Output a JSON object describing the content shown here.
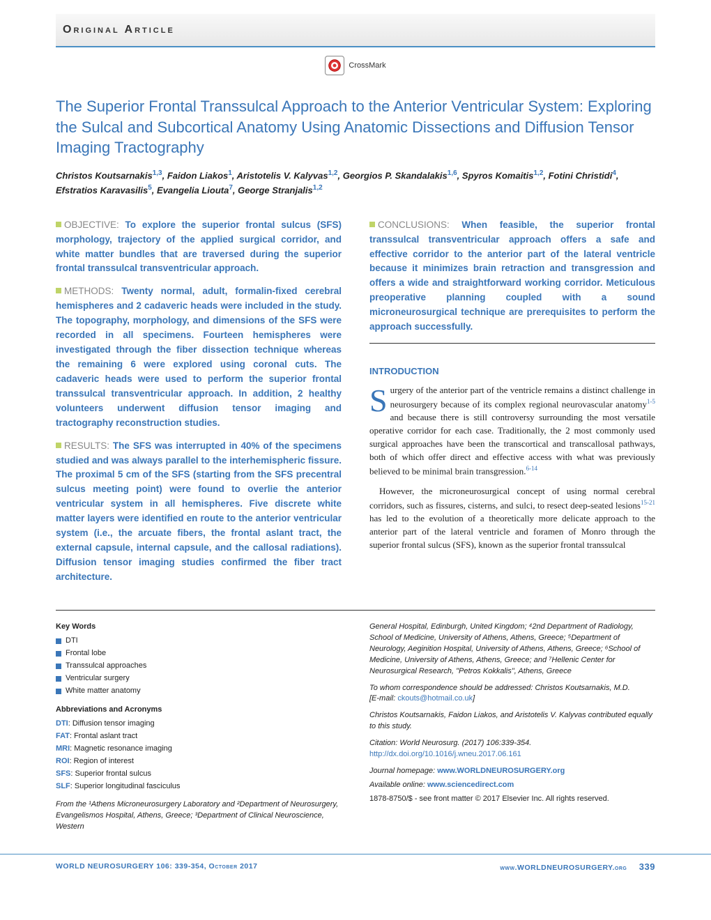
{
  "header": {
    "label": "Original Article"
  },
  "crossmark": {
    "text": "CrossMark"
  },
  "title": "The Superior Frontal Transsulcal Approach to the Anterior Ventricular System: Exploring the Sulcal and Subcortical Anatomy Using Anatomic Dissections and Diffusion Tensor Imaging Tractography",
  "authors_html": "Christos Koutsarnakis<sup>1,3</sup>, Faidon Liakos<sup>1</sup>, Aristotelis V. Kalyvas<sup>1,2</sup>, Georgios P. Skandalakis<sup>1,6</sup>, Spyros Komaitis<sup>1,2</sup>, Fotini Christidi<sup>4</sup>, Efstratios Karavasilis<sup>5</sup>, Evangelia Liouta<sup>7</sup>, George Stranjalis<sup>1,2</sup>",
  "abstract": {
    "objective": {
      "label": "OBJECTIVE:",
      "text": "To explore the superior frontal sulcus (SFS) morphology, trajectory of the applied surgical corridor, and white matter bundles that are traversed during the superior frontal transsulcal transventricular approach."
    },
    "methods": {
      "label": "METHODS:",
      "text": "Twenty normal, adult, formalin-fixed cerebral hemispheres and 2 cadaveric heads were included in the study. The topography, morphology, and dimensions of the SFS were recorded in all specimens. Fourteen hemispheres were investigated through the fiber dissection technique whereas the remaining 6 were explored using coronal cuts. The cadaveric heads were used to perform the superior frontal transsulcal transventricular approach. In addition, 2 healthy volunteers underwent diffusion tensor imaging and tractography reconstruction studies."
    },
    "results": {
      "label": "RESULTS:",
      "text": "The SFS was interrupted in 40% of the specimens studied and was always parallel to the interhemispheric fissure. The proximal 5 cm of the SFS (starting from the SFS precentral sulcus meeting point) were found to overlie the anterior ventricular system in all hemispheres. Five discrete white matter layers were identified en route to the anterior ventricular system (i.e., the arcuate fibers, the frontal aslant tract, the external capsule, internal capsule, and the callosal radiations). Diffusion tensor imaging studies confirmed the fiber tract architecture."
    },
    "conclusions": {
      "label": "CONCLUSIONS:",
      "text": "When feasible, the superior frontal transsulcal transventricular approach offers a safe and effective corridor to the anterior part of the lateral ventricle because it minimizes brain retraction and transgression and offers a wide and straightforward working corridor. Meticulous preoperative planning coupled with a sound microneurosurgical technique are prerequisites to perform the approach successfully."
    }
  },
  "intro": {
    "heading": "INTRODUCTION",
    "p1": "urgery of the anterior part of the ventricle remains a distinct challenge in neurosurgery because of its complex regional neurovascular anatomy",
    "p1_ref1": "1-5",
    "p1_cont": " and because there is still controversy surrounding the most versatile operative corridor for each case. Traditionally, the 2 most commonly used surgical approaches have been the transcortical and transcallosal pathways, both of which offer direct and effective access with what was previously believed to be minimal brain transgression.",
    "p1_ref2": "6-14",
    "p2": "However, the microneurosurgical concept of using normal cerebral corridors, such as fissures, cisterns, and sulci, to resect deep-seated lesions",
    "p2_ref": "15-21",
    "p2_cont": " has led to the evolution of a theoretically more delicate approach to the anterior part of the lateral ventricle and foramen of Monro through the superior frontal sulcus (SFS), known as the superior frontal transsulcal"
  },
  "keywords": {
    "heading": "Key Words",
    "items": [
      "DTI",
      "Frontal lobe",
      "Transsulcal approaches",
      "Ventricular surgery",
      "White matter anatomy"
    ]
  },
  "abbreviations": {
    "heading": "Abbreviations and Acronyms",
    "items": [
      {
        "abbr": "DTI",
        "def": "Diffusion tensor imaging"
      },
      {
        "abbr": "FAT",
        "def": "Frontal aslant tract"
      },
      {
        "abbr": "MRI",
        "def": "Magnetic resonance imaging"
      },
      {
        "abbr": "ROI",
        "def": "Region of interest"
      },
      {
        "abbr": "SFS",
        "def": "Superior frontal sulcus"
      },
      {
        "abbr": "SLF",
        "def": "Superior longitudinal fasciculus"
      }
    ]
  },
  "affiliations": {
    "from": "From the ¹Athens Microneurosurgery Laboratory and ²Department of Neurosurgery, Evangelismos Hospital, Athens, Greece; ³Department of Clinical Neuroscience, Western",
    "cont": "General Hospital, Edinburgh, United Kingdom; ⁴2nd Department of Radiology, School of Medicine, University of Athens, Athens, Greece; ⁵Department of Neurology, Aeginition Hospital, University of Athens, Athens, Greece; ⁶School of Medicine, University of Athens, Athens, Greece; and ⁷Hellenic Center for Neurosurgical Research, \"Petros Kokkalis\", Athens, Greece",
    "corr": "To whom correspondence should be addressed: Christos Koutsarnakis, M.D.",
    "email_label": "[E-mail: ",
    "email": "ckouts@hotmail.co.uk",
    "email_close": "]",
    "contrib": "Christos Koutsarnakis, Faidon Liakos, and Aristotelis V. Kalyvas contributed equally to this study.",
    "citation": "Citation: World Neurosurg. (2017) 106:339-354.",
    "doi": "http://dx.doi.org/10.1016/j.wneu.2017.06.161",
    "homepage_label": "Journal homepage: ",
    "homepage": "www.WORLDNEUROSURGERY.org",
    "online_label": "Available online: ",
    "online": "www.sciencedirect.com",
    "copyright": "1878-8750/$ - see front matter © 2017 Elsevier Inc. All rights reserved."
  },
  "footer": {
    "left": "WORLD NEUROSURGERY 106: 339-354, October 2017",
    "right": "www.WORLDNEUROSURGERY.org",
    "page": "339"
  },
  "colors": {
    "primary": "#3a76b8",
    "accent_green": "#bfd468",
    "header_border": "#4a8fc4"
  }
}
